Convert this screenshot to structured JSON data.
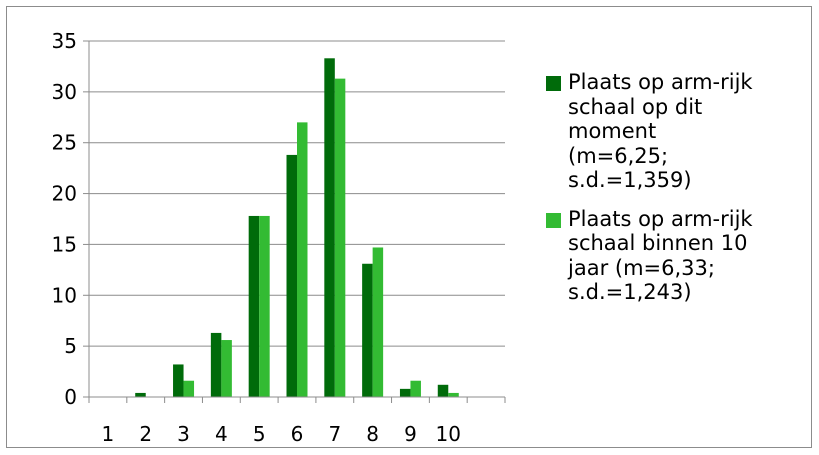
{
  "chart_data": {
    "type": "bar",
    "categories": [
      "1",
      "2",
      "3",
      "4",
      "5",
      "6",
      "7",
      "8",
      "9",
      "10"
    ],
    "ylim": [
      0,
      35
    ],
    "yticks": [
      0,
      5,
      10,
      15,
      20,
      25,
      30,
      35
    ],
    "grid": true,
    "legend_position": "right",
    "series": [
      {
        "name": "Plaats op arm-rijk\nschaal op dit\nmoment\n(m=6,25;\ns.d.=1,359)",
        "color": "#006b0a",
        "values": [
          0,
          0.4,
          3.2,
          6.3,
          17.8,
          23.8,
          33.3,
          13.1,
          0.8,
          1.2
        ]
      },
      {
        "name": "Plaats op arm-rijk\nschaal binnen 10\njaar (m=6,33;\ns.d.=1,243)",
        "color": "#33bb33",
        "values": [
          0,
          0,
          1.6,
          5.6,
          17.8,
          27.0,
          31.3,
          14.7,
          1.6,
          0.4
        ]
      }
    ]
  }
}
